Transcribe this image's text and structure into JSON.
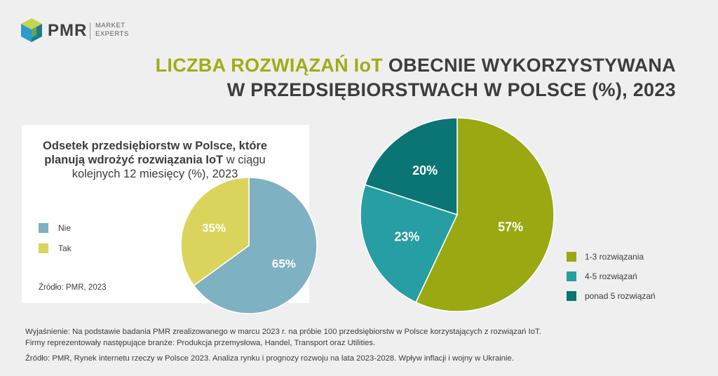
{
  "logo": {
    "brand": "PMR",
    "tagline_1": "MARKET",
    "tagline_2": "EXPERTS"
  },
  "title": {
    "line1_highlight": "LICZBA ROZWIĄZAŃ IoT",
    "line1_rest": "OBECNIE WYKORZYSTYWANA",
    "line2": "W PRZEDSIĘBIORSTWACH W POLSCE (%), 2023"
  },
  "colors": {
    "accent": "#9fad14",
    "nie": "#7eb1c2",
    "tak": "#dbd45c",
    "big_1": "#9aa812",
    "big_2": "#269ea3",
    "big_3": "#0b7474"
  },
  "chart_data": [
    {
      "type": "pie",
      "title": "Odsetek przedsiębiorstw w Polsce, które planują wdrożyć rozwiązania IoT w ciągu kolejnych 12 miesięcy (%), 2023",
      "categories": [
        "Nie",
        "Tak"
      ],
      "values": [
        65,
        35
      ],
      "labels": [
        "65%",
        "35%"
      ],
      "legend": "left",
      "source": "Źródło: PMR, 2023"
    },
    {
      "type": "pie",
      "categories": [
        "1-3 rozwiązania",
        "4-5 rozwiązań",
        "ponad 5 rozwiązań"
      ],
      "values": [
        57,
        23,
        20
      ],
      "labels": [
        "57%",
        "23%",
        "20%"
      ],
      "legend": "right"
    }
  ],
  "panel": {
    "title_part1": "Odsetek przedsiębiorstw w Polsce, które planują wdrożyć rozwiązania IoT",
    "title_part2": "w ciągu kolejnych 12 miesięcy (%), 2023",
    "legend": [
      "Nie",
      "Tak"
    ],
    "source": "Źródło: PMR, 2023"
  },
  "big_legend": [
    "1-3 rozwiązania",
    "4-5 rozwiązań",
    "ponad 5 rozwiązań"
  ],
  "footnotes": {
    "line1": "Wyjaśnienie: Na podstawie badania PMR zrealizowanego w marcu 2023 r. na próbie 100 przedsiębiorstw w Polsce korzystających z rozwiązań IoT.",
    "line2": "Firmy reprezentowały następujące branże: Produkcja przemysłowa, Handel, Transport oraz Utilities.",
    "line3": "Źródło: PMR, Rynek internetu rzeczy w Polsce 2023. Analiza rynku i prognozy rozwoju na lata 2023-2028. Wpływ inflacji i wojny w Ukrainie."
  }
}
